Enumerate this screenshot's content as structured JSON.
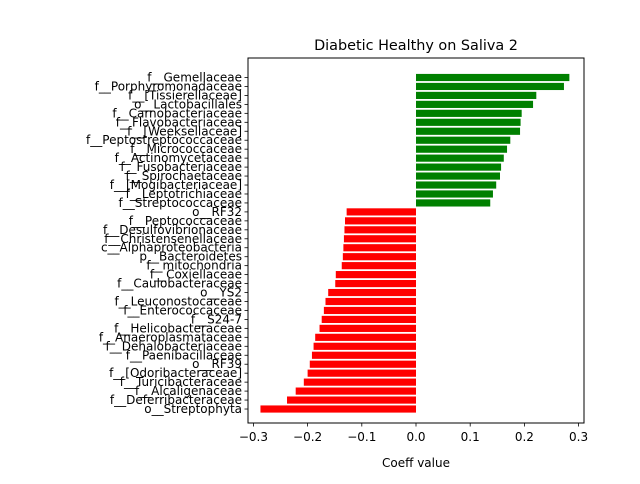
{
  "chart_data": {
    "type": "bar",
    "orientation": "horizontal",
    "title": "Diabetic Healthy on Saliva 2",
    "xlabel": "Coeff value",
    "ylabel": "",
    "xlim": [
      -0.31,
      0.31
    ],
    "xticks": [
      -0.3,
      -0.2,
      -0.1,
      0.0,
      0.1,
      0.2,
      0.3
    ],
    "xtick_labels": [
      "−0.3",
      "−0.2",
      "−0.1",
      "0.0",
      "0.1",
      "0.2",
      "0.3"
    ],
    "grid": false,
    "positive_color": "#008000",
    "negative_color": "#ff0000",
    "categories": [
      "f__Gemellaceae",
      "f__Porphyromonadaceae",
      "f__[Tissierellaceae]",
      "o__Lactobacillales",
      "f__Carnobacteriaceae",
      "f__Flavobacteriaceae",
      "f__[Weeksellaceae]",
      "f__Peptostreptococcaceae",
      "f__Micrococcaceae",
      "f__Actinomycetaceae",
      "f__Fusobacteriaceae",
      "f__Spirochaetaceae",
      "f__[Mogibacteriaceae]",
      "f__Leptotrichiaceae",
      "f__Streptococcaceae",
      "o__RF32",
      "f__Peptococcaceae",
      "f__Desulfovibrionaceae",
      "f__Christensenellaceae",
      "c__Alphaproteobacteria",
      "p__Bacteroidetes",
      "f__mitochondria",
      "f__Coxiellaceae",
      "f__Caulobacteraceae",
      "o__YS2",
      "f__Leuconostocaceae",
      "f__Enterococcaceae",
      "f__S24-7",
      "f__Helicobacteraceae",
      "f__Anaeroplasmataceae",
      "f__Dehalobacteriaceae",
      "f__Paenibacillaceae",
      "o__RF39",
      "f__[Odoribacteraceae]",
      "f__Turicibacteraceae",
      "f__Alcaligenaceae",
      "f__Deferribacteraceae",
      "o__Streptophyta"
    ],
    "values": [
      0.283,
      0.273,
      0.222,
      0.216,
      0.195,
      0.193,
      0.192,
      0.174,
      0.168,
      0.162,
      0.157,
      0.155,
      0.148,
      0.142,
      0.137,
      -0.128,
      -0.131,
      -0.132,
      -0.133,
      -0.134,
      -0.135,
      -0.137,
      -0.148,
      -0.149,
      -0.162,
      -0.167,
      -0.17,
      -0.174,
      -0.178,
      -0.186,
      -0.189,
      -0.192,
      -0.196,
      -0.2,
      -0.207,
      -0.222,
      -0.238,
      -0.287
    ]
  }
}
